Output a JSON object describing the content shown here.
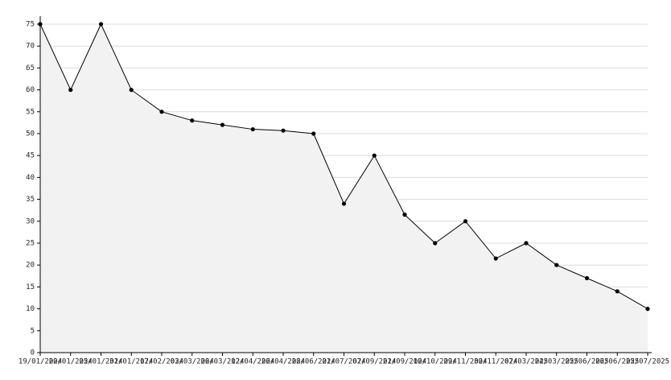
{
  "chart_data": {
    "type": "area",
    "x": [
      "19/01/2024",
      "20/01/2024",
      "25/01/2024",
      "31/01/2024",
      "17/02/2024",
      "03/03/2024",
      "26/03/2024",
      "12/04/2024",
      "26/04/2024",
      "28/06/2024",
      "21/07/2024",
      "07/09/2024",
      "21/09/2024",
      "10/10/2024",
      "29/11/2024",
      "30/11/2024",
      "07/03/2025",
      "24/03/2025",
      "25/06/2025",
      "26/06/2025",
      "25/07/2025"
    ],
    "values": [
      75,
      60,
      75,
      60,
      55,
      53,
      52,
      51,
      50.7,
      50,
      34,
      45,
      31.5,
      25,
      30,
      21.5,
      25,
      20,
      17,
      14,
      10
    ],
    "color": "#000000",
    "fill": "#f2f2f2",
    "ylim": [
      0,
      75
    ],
    "yticks": [
      0,
      5,
      10,
      15,
      20,
      25,
      30,
      35,
      40,
      45,
      50,
      55,
      60,
      65,
      70,
      75
    ],
    "grid": true
  }
}
